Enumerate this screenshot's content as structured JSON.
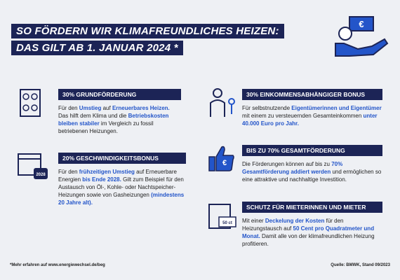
{
  "header": {
    "title_line1": "SO FÖRDERN WIR KLIMAFREUNDLICHES HEIZEN:",
    "title_line2": "DAS GILT AB 1. JANUAR 2024 *"
  },
  "icons": {
    "banknote": "€",
    "calendar": "2028",
    "thumb": "€",
    "rent": "50 ct"
  },
  "sections": [
    {
      "heading": "30% GRUNDFÖRDERUNG",
      "body": [
        {
          "text": "Für den "
        },
        {
          "text": "Umstieg",
          "em": true
        },
        {
          "text": " auf "
        },
        {
          "text": "Erneuerbares Heizen.",
          "em": true
        },
        {
          "text": " Das hilft dem Klima und die "
        },
        {
          "text": "Betriebskosten bleiben stabiler",
          "em": true
        },
        {
          "text": " im Vergleich zu fossil betriebenen Heizungen."
        }
      ]
    },
    {
      "heading": "20% GESCHWINDIGKEITSBONUS",
      "body": [
        {
          "text": "Für den "
        },
        {
          "text": "frühzeitigen Umstieg",
          "em": true
        },
        {
          "text": " auf Erneuerbare Energien "
        },
        {
          "text": "bis Ende 2028.",
          "em": true
        },
        {
          "text": " Gilt zum Beispiel für den Austausch von Öl-, Kohle- oder Nachtspeicher-Heizungen sowie von Gasheizungen "
        },
        {
          "text": "(mindestens 20 Jahre alt).",
          "em": true
        }
      ]
    },
    {
      "heading": "30% EINKOMMENSABHÄNGIGER BONUS",
      "body": [
        {
          "text": "Für selbstnutzende "
        },
        {
          "text": "Eigentümerinnen und Eigentümer",
          "em": true
        },
        {
          "text": " mit einem zu versteuernden Gesamteinkommen "
        },
        {
          "text": "unter 40.000 Euro pro Jahr.",
          "em": true
        }
      ]
    },
    {
      "heading": "BIS ZU 70% GESAMTFÖRDERUNG",
      "body": [
        {
          "text": "Die Förderungen können auf bis zu "
        },
        {
          "text": "70% Gesamtförderung addiert werden",
          "em": true
        },
        {
          "text": " und ermöglichen so eine attraktive und nachhaltige Investition."
        }
      ]
    },
    {
      "heading": "SCHUTZ FÜR MIETERINNEN UND MIETER",
      "body": [
        {
          "text": "Mit einer "
        },
        {
          "text": "Deckelung der Kosten",
          "em": true
        },
        {
          "text": " für den Heizungstausch auf "
        },
        {
          "text": "50 Cent pro Quadratmeter und Monat.",
          "em": true
        },
        {
          "text": " Damit alle von der klimafreundlichen Heizung profitieren."
        }
      ]
    }
  ],
  "footer": {
    "note": "*Mehr erfahren auf www.energiewechsel.de/beg",
    "source": "Quelle: BMWK, Stand 09/2023"
  }
}
